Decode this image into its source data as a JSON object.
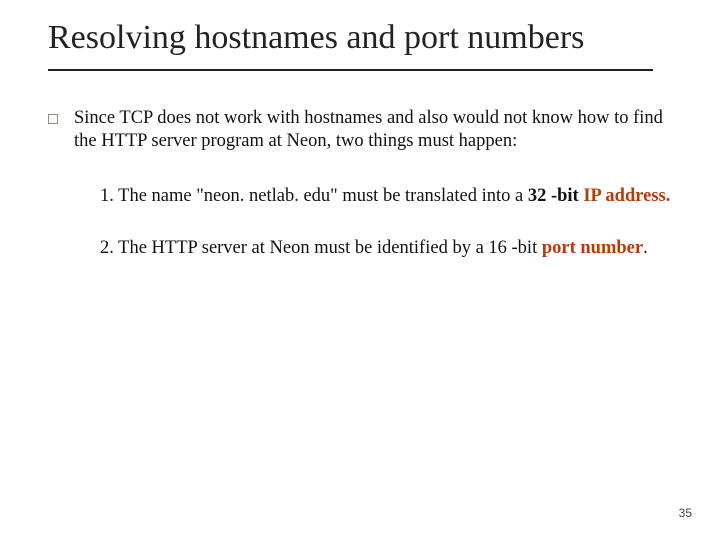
{
  "title": "Resolving hostnames and port numbers",
  "bullet_marker_color": "#9a8a7a",
  "main_text": "Since TCP does not work with hostnames and also would not know how to find the HTTP server program at Neon, two things must happen:",
  "item1_lead": "1. The name \"neon. netlab. edu\" must be  translated into a ",
  "item1_bold_black": "32 -bit ",
  "item1_bold_red": "IP address.",
  "item2_lead": "2. The HTTP server at Neon must be identified by a 16 -bit ",
  "item2_bold_red": "port number",
  "item2_tail": ".",
  "page_number": "35",
  "colors": {
    "text": "#111111",
    "accent": "#b43c0a",
    "rule": "#222222",
    "background": "#ffffff"
  },
  "fontsizes": {
    "title": 34,
    "body": 18.5,
    "pagenum": 12
  }
}
